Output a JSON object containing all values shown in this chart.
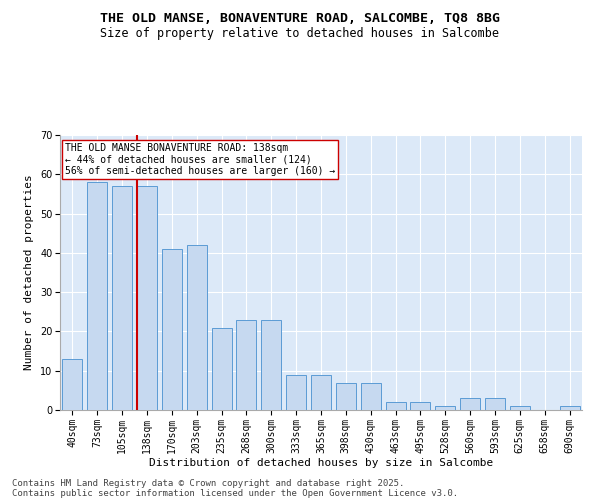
{
  "title_line1": "THE OLD MANSE, BONAVENTURE ROAD, SALCOMBE, TQ8 8BG",
  "title_line2": "Size of property relative to detached houses in Salcombe",
  "xlabel": "Distribution of detached houses by size in Salcombe",
  "ylabel": "Number of detached properties",
  "categories": [
    "40sqm",
    "73sqm",
    "105sqm",
    "138sqm",
    "170sqm",
    "203sqm",
    "235sqm",
    "268sqm",
    "300sqm",
    "333sqm",
    "365sqm",
    "398sqm",
    "430sqm",
    "463sqm",
    "495sqm",
    "528sqm",
    "560sqm",
    "593sqm",
    "625sqm",
    "658sqm",
    "690sqm"
  ],
  "values": [
    13,
    58,
    57,
    57,
    41,
    42,
    21,
    23,
    23,
    9,
    9,
    7,
    7,
    2,
    2,
    1,
    3,
    3,
    1,
    0,
    1
  ],
  "bar_color": "#c6d9f0",
  "bar_edge_color": "#5b9bd5",
  "red_line_index": 3,
  "red_line_color": "#cc0000",
  "annotation_line1": "THE OLD MANSE BONAVENTURE ROAD: 138sqm",
  "annotation_line2": "← 44% of detached houses are smaller (124)",
  "annotation_line3": "56% of semi-detached houses are larger (160) →",
  "annotation_box_color": "white",
  "annotation_box_edge": "#cc0000",
  "ylim": [
    0,
    70
  ],
  "yticks": [
    0,
    10,
    20,
    30,
    40,
    50,
    60,
    70
  ],
  "background_color": "#dce9f8",
  "grid_color": "white",
  "footer_line1": "Contains HM Land Registry data © Crown copyright and database right 2025.",
  "footer_line2": "Contains public sector information licensed under the Open Government Licence v3.0.",
  "title_fontsize": 9.5,
  "subtitle_fontsize": 8.5,
  "axis_label_fontsize": 8,
  "tick_fontsize": 7,
  "annotation_fontsize": 7,
  "footer_fontsize": 6.5
}
